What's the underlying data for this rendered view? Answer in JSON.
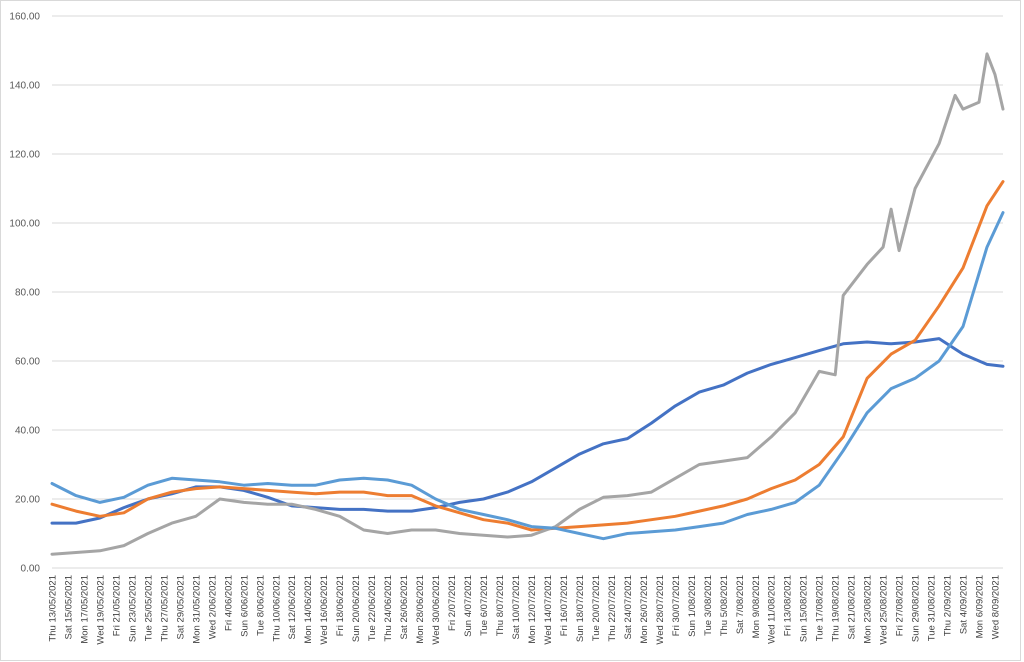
{
  "chart_data": {
    "type": "line",
    "title": "",
    "xlabel": "",
    "ylabel": "",
    "ylim": [
      0,
      160
    ],
    "ytick_step": 20,
    "ytick_labels": [
      "0.00",
      "20.00",
      "40.00",
      "60.00",
      "80.00",
      "100.00",
      "120.00",
      "140.00",
      "160.00"
    ],
    "grid": true,
    "legend": "none",
    "x_start": "2021-05-13",
    "x_end": "2021-09-09",
    "xtick_labels": [
      "Thu 13/05/2021",
      "Sat 15/05/2021",
      "Mon 17/05/2021",
      "Wed 19/05/2021",
      "Fri 21/05/2021",
      "Sun 23/05/2021",
      "Tue 25/05/2021",
      "Thu 27/05/2021",
      "Sat 29/05/2021",
      "Mon 31/05/2021",
      "Wed 2/06/2021",
      "Fri 4/06/2021",
      "Sun 6/06/2021",
      "Tue 8/06/2021",
      "Thu 10/06/2021",
      "Sat 12/06/2021",
      "Mon 14/06/2021",
      "Wed 16/06/2021",
      "Fri 18/06/2021",
      "Sun 20/06/2021",
      "Tue 22/06/2021",
      "Thu 24/06/2021",
      "Sat 26/06/2021",
      "Mon 28/06/2021",
      "Wed 30/06/2021",
      "Fri 2/07/2021",
      "Sun 4/07/2021",
      "Tue 6/07/2021",
      "Thu 8/07/2021",
      "Sat 10/07/2021",
      "Mon 12/07/2021",
      "Wed 14/07/2021",
      "Fri 16/07/2021",
      "Sun 18/07/2021",
      "Tue 20/07/2021",
      "Thu 22/07/2021",
      "Sat 24/07/2021",
      "Mon 26/07/2021",
      "Wed 28/07/2021",
      "Fri 30/07/2021",
      "Sun 1/08/2021",
      "Tue 3/08/2021",
      "Thu 5/08/2021",
      "Sat 7/08/2021",
      "Mon 9/08/2021",
      "Wed 11/08/2021",
      "Fri 13/08/2021",
      "Sun 15/08/2021",
      "Tue 17/08/2021",
      "Thu 19/08/2021",
      "Sat 21/08/2021",
      "Mon 23/08/2021",
      "Wed 25/08/2021",
      "Fri 27/08/2021",
      "Sun 29/08/2021",
      "Tue 31/08/2021",
      "Thu 2/09/2021",
      "Sat 4/09/2021",
      "Mon 6/09/2021",
      "Wed 8/09/2021"
    ],
    "series": [
      {
        "color": "#4472c4",
        "points": [
          [
            "2021-05-13",
            13
          ],
          [
            "2021-05-16",
            13
          ],
          [
            "2021-05-19",
            14.5
          ],
          [
            "2021-05-22",
            17.5
          ],
          [
            "2021-05-25",
            20
          ],
          [
            "2021-05-28",
            21.5
          ],
          [
            "2021-05-31",
            23.5
          ],
          [
            "2021-06-03",
            23.5
          ],
          [
            "2021-06-06",
            22.5
          ],
          [
            "2021-06-09",
            20.5
          ],
          [
            "2021-06-12",
            18
          ],
          [
            "2021-06-15",
            17.5
          ],
          [
            "2021-06-18",
            17
          ],
          [
            "2021-06-21",
            17
          ],
          [
            "2021-06-24",
            16.5
          ],
          [
            "2021-06-27",
            16.5
          ],
          [
            "2021-06-30",
            17.5
          ],
          [
            "2021-07-03",
            19
          ],
          [
            "2021-07-06",
            20
          ],
          [
            "2021-07-09",
            22
          ],
          [
            "2021-07-12",
            25
          ],
          [
            "2021-07-15",
            29
          ],
          [
            "2021-07-18",
            33
          ],
          [
            "2021-07-21",
            36
          ],
          [
            "2021-07-24",
            37.5
          ],
          [
            "2021-07-27",
            42
          ],
          [
            "2021-07-30",
            47
          ],
          [
            "2021-08-02",
            51
          ],
          [
            "2021-08-05",
            53
          ],
          [
            "2021-08-08",
            56.5
          ],
          [
            "2021-08-11",
            59
          ],
          [
            "2021-08-14",
            61
          ],
          [
            "2021-08-17",
            63
          ],
          [
            "2021-08-20",
            65
          ],
          [
            "2021-08-23",
            65.5
          ],
          [
            "2021-08-26",
            65
          ],
          [
            "2021-08-29",
            65.5
          ],
          [
            "2021-09-01",
            66.5
          ],
          [
            "2021-09-04",
            62
          ],
          [
            "2021-09-07",
            59
          ],
          [
            "2021-09-09",
            58.5
          ]
        ]
      },
      {
        "color": "#ed7d31",
        "points": [
          [
            "2021-05-13",
            18.5
          ],
          [
            "2021-05-16",
            16.5
          ],
          [
            "2021-05-19",
            15
          ],
          [
            "2021-05-22",
            16
          ],
          [
            "2021-05-25",
            20
          ],
          [
            "2021-05-28",
            22
          ],
          [
            "2021-05-31",
            23
          ],
          [
            "2021-06-03",
            23.5
          ],
          [
            "2021-06-06",
            23
          ],
          [
            "2021-06-09",
            22.5
          ],
          [
            "2021-06-12",
            22
          ],
          [
            "2021-06-15",
            21.5
          ],
          [
            "2021-06-18",
            22
          ],
          [
            "2021-06-21",
            22
          ],
          [
            "2021-06-24",
            21
          ],
          [
            "2021-06-27",
            21
          ],
          [
            "2021-06-30",
            18
          ],
          [
            "2021-07-03",
            16
          ],
          [
            "2021-07-06",
            14
          ],
          [
            "2021-07-09",
            13
          ],
          [
            "2021-07-12",
            11
          ],
          [
            "2021-07-15",
            11.5
          ],
          [
            "2021-07-18",
            12
          ],
          [
            "2021-07-21",
            12.5
          ],
          [
            "2021-07-24",
            13
          ],
          [
            "2021-07-27",
            14
          ],
          [
            "2021-07-30",
            15
          ],
          [
            "2021-08-02",
            16.5
          ],
          [
            "2021-08-05",
            18
          ],
          [
            "2021-08-08",
            20
          ],
          [
            "2021-08-11",
            23
          ],
          [
            "2021-08-14",
            25.5
          ],
          [
            "2021-08-17",
            30
          ],
          [
            "2021-08-20",
            38
          ],
          [
            "2021-08-23",
            55
          ],
          [
            "2021-08-26",
            62
          ],
          [
            "2021-08-29",
            66
          ],
          [
            "2021-09-01",
            76
          ],
          [
            "2021-09-04",
            87
          ],
          [
            "2021-09-07",
            105
          ],
          [
            "2021-09-09",
            112
          ]
        ]
      },
      {
        "color": "#a5a5a5",
        "points": [
          [
            "2021-05-13",
            4
          ],
          [
            "2021-05-16",
            4.5
          ],
          [
            "2021-05-19",
            5
          ],
          [
            "2021-05-22",
            6.5
          ],
          [
            "2021-05-25",
            10
          ],
          [
            "2021-05-28",
            13
          ],
          [
            "2021-05-31",
            15
          ],
          [
            "2021-06-03",
            20
          ],
          [
            "2021-06-06",
            19
          ],
          [
            "2021-06-09",
            18.5
          ],
          [
            "2021-06-12",
            18.5
          ],
          [
            "2021-06-15",
            17
          ],
          [
            "2021-06-18",
            15
          ],
          [
            "2021-06-21",
            11
          ],
          [
            "2021-06-24",
            10
          ],
          [
            "2021-06-27",
            11
          ],
          [
            "2021-06-30",
            11
          ],
          [
            "2021-07-03",
            10
          ],
          [
            "2021-07-06",
            9.5
          ],
          [
            "2021-07-09",
            9
          ],
          [
            "2021-07-12",
            9.5
          ],
          [
            "2021-07-15",
            12
          ],
          [
            "2021-07-18",
            17
          ],
          [
            "2021-07-21",
            20.5
          ],
          [
            "2021-07-24",
            21
          ],
          [
            "2021-07-27",
            22
          ],
          [
            "2021-07-30",
            26
          ],
          [
            "2021-08-02",
            30
          ],
          [
            "2021-08-05",
            31
          ],
          [
            "2021-08-08",
            32
          ],
          [
            "2021-08-11",
            38
          ],
          [
            "2021-08-14",
            45
          ],
          [
            "2021-08-17",
            57
          ],
          [
            "2021-08-19",
            56
          ],
          [
            "2021-08-20",
            79
          ],
          [
            "2021-08-23",
            88
          ],
          [
            "2021-08-25",
            93
          ],
          [
            "2021-08-26",
            104
          ],
          [
            "2021-08-27",
            92
          ],
          [
            "2021-08-29",
            110
          ],
          [
            "2021-09-01",
            123
          ],
          [
            "2021-09-03",
            137
          ],
          [
            "2021-09-04",
            133
          ],
          [
            "2021-09-06",
            135
          ],
          [
            "2021-09-07",
            149
          ],
          [
            "2021-09-08",
            143
          ],
          [
            "2021-09-09",
            133
          ]
        ]
      },
      {
        "color": "#5b9bd5",
        "points": [
          [
            "2021-05-13",
            24.5
          ],
          [
            "2021-05-16",
            21
          ],
          [
            "2021-05-19",
            19
          ],
          [
            "2021-05-22",
            20.5
          ],
          [
            "2021-05-25",
            24
          ],
          [
            "2021-05-28",
            26
          ],
          [
            "2021-05-31",
            25.5
          ],
          [
            "2021-06-03",
            25
          ],
          [
            "2021-06-06",
            24
          ],
          [
            "2021-06-09",
            24.5
          ],
          [
            "2021-06-12",
            24
          ],
          [
            "2021-06-15",
            24
          ],
          [
            "2021-06-18",
            25.5
          ],
          [
            "2021-06-21",
            26
          ],
          [
            "2021-06-24",
            25.5
          ],
          [
            "2021-06-27",
            24
          ],
          [
            "2021-06-30",
            20
          ],
          [
            "2021-07-03",
            17
          ],
          [
            "2021-07-06",
            15.5
          ],
          [
            "2021-07-09",
            14
          ],
          [
            "2021-07-12",
            12
          ],
          [
            "2021-07-15",
            11.5
          ],
          [
            "2021-07-18",
            10
          ],
          [
            "2021-07-21",
            8.5
          ],
          [
            "2021-07-24",
            10
          ],
          [
            "2021-07-27",
            10.5
          ],
          [
            "2021-07-30",
            11
          ],
          [
            "2021-08-02",
            12
          ],
          [
            "2021-08-05",
            13
          ],
          [
            "2021-08-08",
            15.5
          ],
          [
            "2021-08-11",
            17
          ],
          [
            "2021-08-14",
            19
          ],
          [
            "2021-08-17",
            24
          ],
          [
            "2021-08-20",
            34
          ],
          [
            "2021-08-23",
            45
          ],
          [
            "2021-08-26",
            52
          ],
          [
            "2021-08-29",
            55
          ],
          [
            "2021-09-01",
            60
          ],
          [
            "2021-09-04",
            70
          ],
          [
            "2021-09-07",
            93
          ],
          [
            "2021-09-09",
            103
          ]
        ]
      }
    ]
  }
}
